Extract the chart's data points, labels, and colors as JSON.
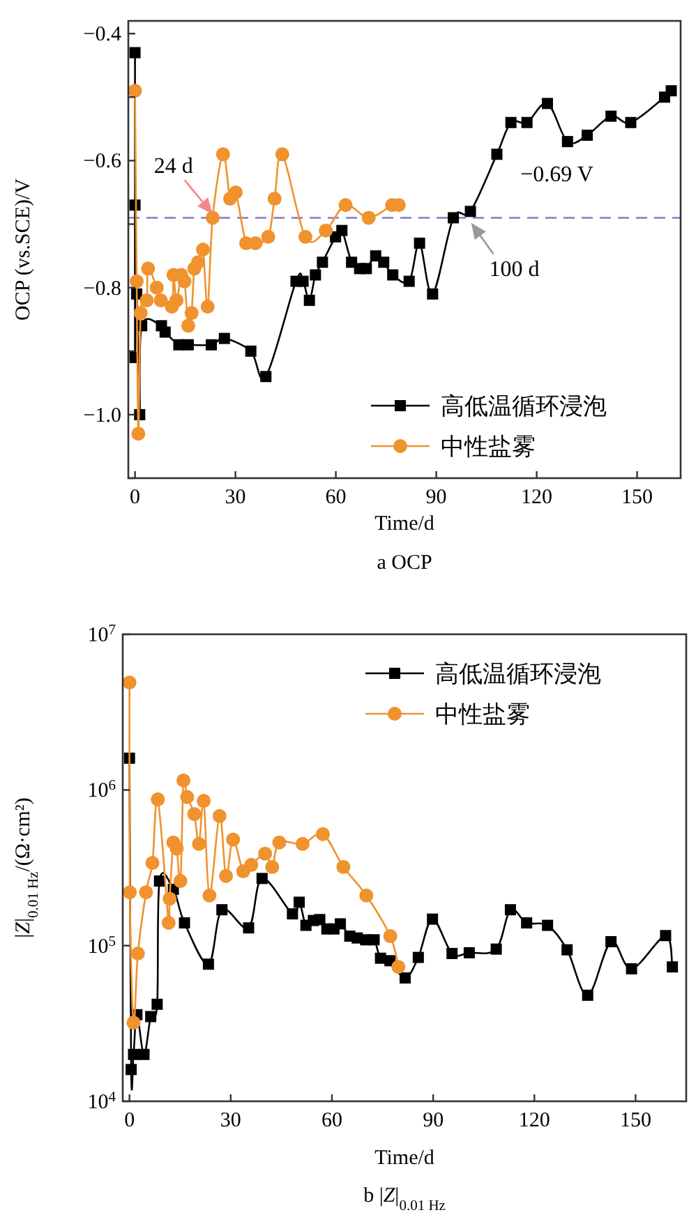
{
  "chart_data": [
    {
      "type": "line",
      "title": "a OCP",
      "xlabel": "Time/d",
      "ylabel": "OCP (vs.SCE)/V",
      "xlim": [
        -2,
        163
      ],
      "xticks": [
        0,
        30,
        60,
        90,
        120,
        150
      ],
      "ylim": [
        -1.1,
        -0.38
      ],
      "yticks": [
        {
          "value": -1.1,
          "label": null
        },
        {
          "value": -1.0,
          "label": "−1.0"
        },
        {
          "value": -0.9,
          "label": null
        },
        {
          "value": -0.8,
          "label": "−0.8"
        },
        {
          "value": -0.7,
          "label": null
        },
        {
          "value": -0.6,
          "label": "−0.6"
        },
        {
          "value": -0.5,
          "label": null
        },
        {
          "value": -0.4,
          "label": "−0.4"
        }
      ],
      "legend": "bottom right",
      "series": [
        {
          "name": "高低温循环浸泡",
          "color": "#000000",
          "marker": "square",
          "x": [
            0,
            0,
            0,
            0.5,
            1.4,
            2,
            7.9,
            9,
            13.1,
            15.9,
            22.8,
            26.7,
            34.6,
            39.1,
            48.1,
            50.2,
            52.1,
            53.9,
            56,
            59.9,
            61.8,
            64.7,
            67.1,
            69.1,
            71.9,
            74.3,
            77,
            81.9,
            85,
            88.9,
            95.1,
            100.2,
            108.1,
            112.3,
            117.1,
            123.2,
            129.2,
            135.1,
            142.2,
            148.1,
            158.2,
            160.2
          ],
          "values": [
            -0.43,
            -0.67,
            -0.91,
            -0.81,
            -1.0,
            -0.86,
            -0.86,
            -0.87,
            -0.89,
            -0.89,
            -0.89,
            -0.88,
            -0.9,
            -0.94,
            -0.79,
            -0.79,
            -0.82,
            -0.78,
            -0.76,
            -0.72,
            -0.71,
            -0.76,
            -0.77,
            -0.77,
            -0.75,
            -0.76,
            -0.78,
            -0.79,
            -0.73,
            -0.81,
            -0.69,
            -0.68,
            -0.59,
            -0.54,
            -0.54,
            -0.51,
            -0.57,
            -0.56,
            -0.53,
            -0.54,
            -0.5,
            -0.49
          ]
        },
        {
          "name": "中性盐雾",
          "color": "#f0922e",
          "marker": "circle",
          "x": [
            0,
            0.5,
            1,
            1.7,
            3.5,
            3.9,
            6.5,
            7.7,
            11,
            11.5,
            12.4,
            13.8,
            14.8,
            15.9,
            16.9,
            17.7,
            18.8,
            20.3,
            21.7,
            23.2,
            26.3,
            28.4,
            30.1,
            33.2,
            36,
            39.8,
            41.7,
            44,
            50.9,
            57,
            62.9,
            69.8,
            76.8,
            78.8
          ],
          "values": [
            -0.49,
            -0.79,
            -1.03,
            -0.84,
            -0.82,
            -0.77,
            -0.8,
            -0.82,
            -0.83,
            -0.78,
            -0.82,
            -0.78,
            -0.79,
            -0.86,
            -0.84,
            -0.77,
            -0.76,
            -0.74,
            -0.83,
            -0.69,
            -0.59,
            -0.66,
            -0.65,
            -0.73,
            -0.73,
            -0.72,
            -0.66,
            -0.59,
            -0.72,
            -0.71,
            -0.67,
            -0.69,
            -0.67,
            -0.67
          ]
        }
      ],
      "ref_lines": [
        {
          "axis": "y",
          "value": -0.69,
          "label": "−0.69 V",
          "color": "#8878c8",
          "line_style": "dashed"
        }
      ],
      "annotations": [
        {
          "text": "24 d",
          "x": 24,
          "y": -0.69
        },
        {
          "text": "100 d",
          "x": 100,
          "y": -0.69
        }
      ]
    },
    {
      "type": "line",
      "title": "b |*Z*|$_{0.01 Hz}$",
      "xlabel": "Time/d",
      "ylabel": "|*Z*|$_{0.01 Hz}$/(Ω·cm²)",
      "xlim": [
        -2,
        165
      ],
      "xticks": [
        0,
        30,
        60,
        90,
        120,
        150
      ],
      "ylim": [
        10000,
        10000000
      ],
      "log": "y",
      "yticks": [
        {
          "value": 10000,
          "label": "10$^{4}$"
        },
        {
          "value": 100000,
          "label": "10$^{5}$"
        },
        {
          "value": 1000000,
          "label": "10$^{6}$"
        },
        {
          "value": 10000000,
          "label": "10$^{7}$"
        }
      ],
      "legend": "top right",
      "series": [
        {
          "name": "高低温循环浸泡",
          "color": "#000000",
          "marker": "square",
          "x": [
            0,
            0.5,
            1.2,
            2.2,
            4.3,
            6.3,
            8.2,
            8.9,
            13,
            16.3,
            23.4,
            27.4,
            35.3,
            39.3,
            48.3,
            50.3,
            52.3,
            54.5,
            56.4,
            58.5,
            60.6,
            62.5,
            65.3,
            67.5,
            70,
            72.5,
            74.4,
            77.2,
            81.7,
            85.6,
            89.8,
            95.6,
            100.7,
            108.7,
            112.9,
            117.7,
            123.9,
            129.7,
            135.8,
            142.7,
            148.8,
            158.9,
            160.9
          ],
          "values": [
            1600000,
            16000,
            20000,
            36000,
            20000,
            35000,
            42000,
            260000,
            230000,
            140000,
            76000,
            170000,
            130000,
            270000,
            160000,
            190000,
            135000,
            145000,
            147000,
            128000,
            128000,
            138000,
            115000,
            112000,
            109000,
            109000,
            83000,
            80000,
            62000,
            84000,
            148000,
            89000,
            90000,
            95000,
            170000,
            140000,
            135000,
            94000,
            48000,
            106000,
            71000,
            116000,
            73000
          ]
        },
        {
          "name": "中性盐雾",
          "color": "#f0922e",
          "marker": "circle",
          "x": [
            0,
            0.1,
            1.2,
            2.5,
            4.9,
            6.8,
            8.4,
            11.6,
            11.9,
            13,
            14,
            15.1,
            16,
            17.1,
            19.2,
            20.6,
            22,
            23.7,
            26.7,
            28.6,
            30.7,
            33.7,
            36.1,
            40.2,
            42.3,
            44.4,
            51.3,
            57.3,
            63.4,
            70.2,
            77.3,
            79.7
          ],
          "values": [
            4900000,
            220000,
            32000,
            89000,
            220000,
            340000,
            870000,
            140000,
            200000,
            460000,
            420000,
            260000,
            1150000,
            900000,
            700000,
            450000,
            850000,
            210000,
            680000,
            280000,
            480000,
            300000,
            330000,
            390000,
            320000,
            460000,
            450000,
            520000,
            320000,
            210000,
            115000,
            73000
          ]
        }
      ]
    }
  ]
}
